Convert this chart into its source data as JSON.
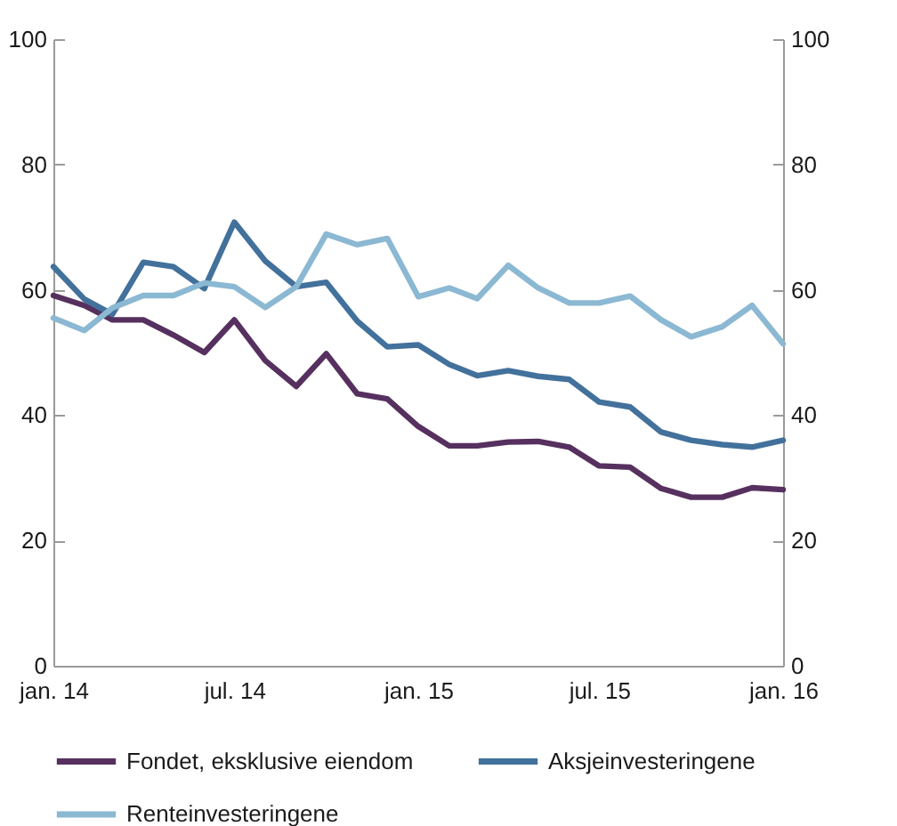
{
  "chart_data": {
    "type": "line",
    "x": [
      "2014-01",
      "2014-02",
      "2014-03",
      "2014-04",
      "2014-05",
      "2014-06",
      "2014-07",
      "2014-08",
      "2014-09",
      "2014-10",
      "2014-11",
      "2014-12",
      "2015-01",
      "2015-02",
      "2015-03",
      "2015-04",
      "2015-05",
      "2015-06",
      "2015-07",
      "2015-08",
      "2015-09",
      "2015-10",
      "2015-11",
      "2015-12",
      "2016-01"
    ],
    "series": [
      {
        "name": "Fondet, eksklusive eiendom",
        "color": "#56305f",
        "values": [
          59.1,
          57.5,
          55.2,
          55.2,
          52.8,
          50.0,
          55.2,
          48.7,
          44.6,
          49.8,
          43.4,
          42.6,
          38.2,
          35.1,
          35.1,
          35.7,
          35.8,
          34.9,
          31.9,
          31.7,
          28.3,
          26.9,
          26.9,
          28.4,
          28.1
        ]
      },
      {
        "name": "Aksjeinvesteringene",
        "color": "#42719b",
        "values": [
          63.7,
          58.5,
          56.1,
          64.4,
          63.7,
          60.2,
          70.8,
          64.6,
          60.5,
          61.2,
          55.0,
          50.9,
          51.2,
          48.1,
          46.3,
          47.1,
          46.2,
          45.7,
          42.1,
          41.3,
          37.3,
          36.0,
          35.3,
          34.9,
          36.0
        ]
      },
      {
        "name": "Renteinvesteringene",
        "color": "#8bb8d2",
        "values": [
          55.5,
          53.5,
          57.1,
          59.1,
          59.1,
          61.1,
          60.5,
          57.2,
          60.5,
          68.9,
          67.2,
          68.2,
          58.9,
          60.3,
          58.6,
          63.9,
          60.3,
          57.9,
          57.9,
          59.0,
          55.2,
          52.5,
          54.1,
          57.5,
          51.4
        ]
      }
    ],
    "xlim": [
      "2014-01",
      "2016-01"
    ],
    "xticks": [
      {
        "value": "2014-01",
        "label": "jan. 14"
      },
      {
        "value": "2014-07",
        "label": "jul. 14"
      },
      {
        "value": "2015-01",
        "label": "jan. 15"
      },
      {
        "value": "2015-07",
        "label": "jul. 15"
      },
      {
        "value": "2016-01",
        "label": "jan. 16"
      }
    ],
    "ylim": [
      0,
      100
    ],
    "yticks": [
      0,
      20,
      40,
      60,
      80,
      100
    ],
    "y2lim": [
      0,
      100
    ],
    "y2ticks": [
      0,
      20,
      40,
      60,
      80,
      100
    ],
    "grid": false,
    "legend": "bottom",
    "line_style": "solid"
  }
}
